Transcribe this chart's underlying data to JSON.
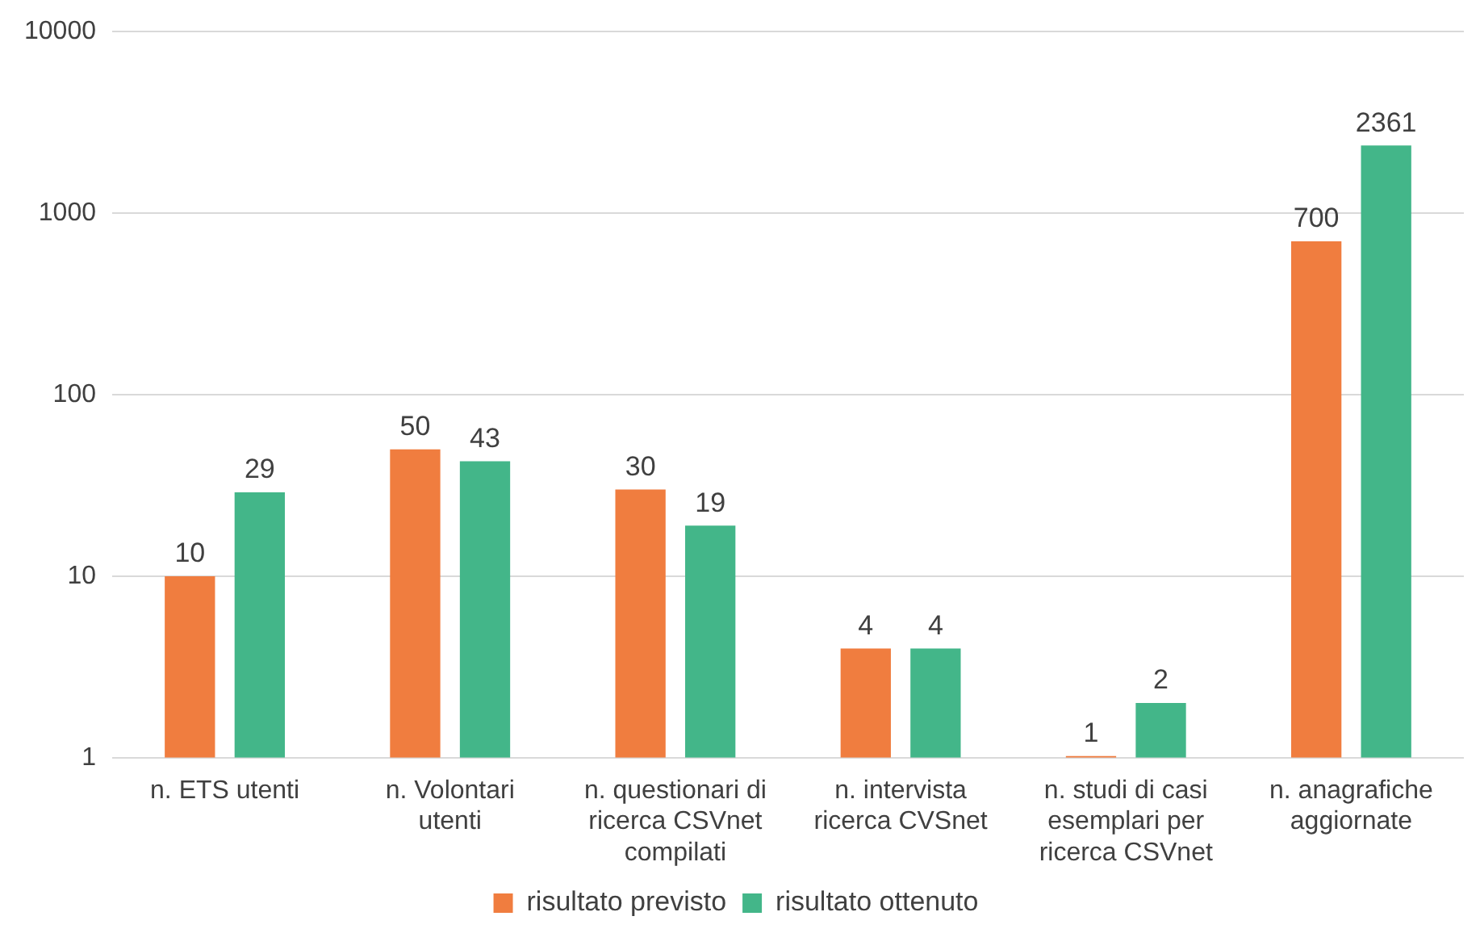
{
  "chart_data": {
    "type": "bar",
    "log": "y",
    "categories": [
      "n. ETS utenti",
      "n. Volontari utenti",
      "n. questionari di ricerca CSVnet compilati",
      "n. intervista ricerca CVSnet",
      "n. studi di casi esemplari per ricerca CSVnet",
      "n. anagrafiche aggiornate"
    ],
    "series": [
      {
        "name": "risultato previsto",
        "color": "#f07d3f",
        "values": [
          10,
          50,
          30,
          4,
          1,
          700
        ]
      },
      {
        "name": "risultato ottenuto",
        "color": "#43b689",
        "values": [
          29,
          43,
          19,
          4,
          2,
          2361
        ]
      }
    ],
    "ylim": [
      1,
      10000
    ],
    "yticks": [
      1,
      10,
      100,
      1000,
      10000
    ],
    "grid": "y",
    "legend": "bottom",
    "data_labels": true
  }
}
